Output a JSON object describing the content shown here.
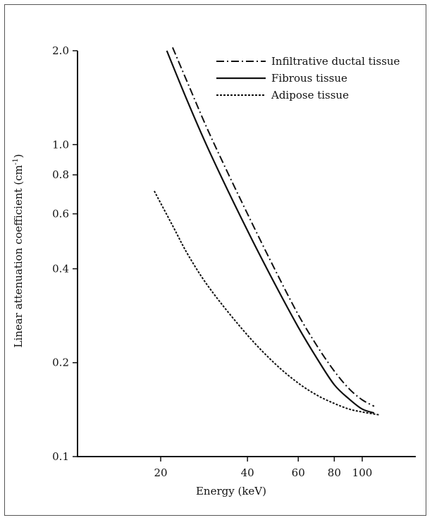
{
  "chart_data": {
    "type": "line",
    "title": "",
    "xlabel": "Energy (keV)",
    "ylabel": "Linear attenuation coefficient (cm",
    "ylabel_sup": "-1",
    "ylabel_close": ")",
    "xscale": "log",
    "yscale": "log",
    "xlim": [
      14,
      150
    ],
    "ylim": [
      0.1,
      2.0
    ],
    "xticks": [
      20,
      40,
      60,
      80,
      100
    ],
    "xtick_labels": [
      "20",
      "40",
      "60",
      "80",
      "100"
    ],
    "yticks": [
      0.1,
      0.2,
      0.4,
      0.6,
      0.8,
      1.0,
      2.0
    ],
    "ytick_labels": [
      "0.1",
      "0.2",
      "0.4",
      "0.6",
      "0.8",
      "1.0",
      "2.0"
    ],
    "grid": false,
    "legend_position": "top-right",
    "series": [
      {
        "name": "Infiltrative ductal tissue",
        "style": "dashdot",
        "color": "#111111",
        "x": [
          22,
          25,
          30,
          40,
          50,
          60,
          70,
          80,
          90,
          100,
          110
        ],
        "y": [
          2.05,
          1.55,
          1.05,
          0.6,
          0.395,
          0.285,
          0.225,
          0.188,
          0.165,
          0.152,
          0.145
        ]
      },
      {
        "name": "Fibrous tissue",
        "style": "solid",
        "color": "#111111",
        "x": [
          21,
          25,
          30,
          40,
          50,
          60,
          70,
          80,
          90,
          100,
          110
        ],
        "y": [
          2.0,
          1.35,
          0.92,
          0.53,
          0.355,
          0.26,
          0.205,
          0.17,
          0.153,
          0.142,
          0.138
        ]
      },
      {
        "name": "Adipose tissue",
        "style": "dotted",
        "color": "#111111",
        "x": [
          19,
          22,
          25,
          30,
          40,
          50,
          60,
          70,
          80,
          90,
          100,
          115
        ],
        "y": [
          0.71,
          0.55,
          0.44,
          0.34,
          0.245,
          0.198,
          0.172,
          0.157,
          0.148,
          0.142,
          0.139,
          0.136
        ]
      }
    ]
  }
}
